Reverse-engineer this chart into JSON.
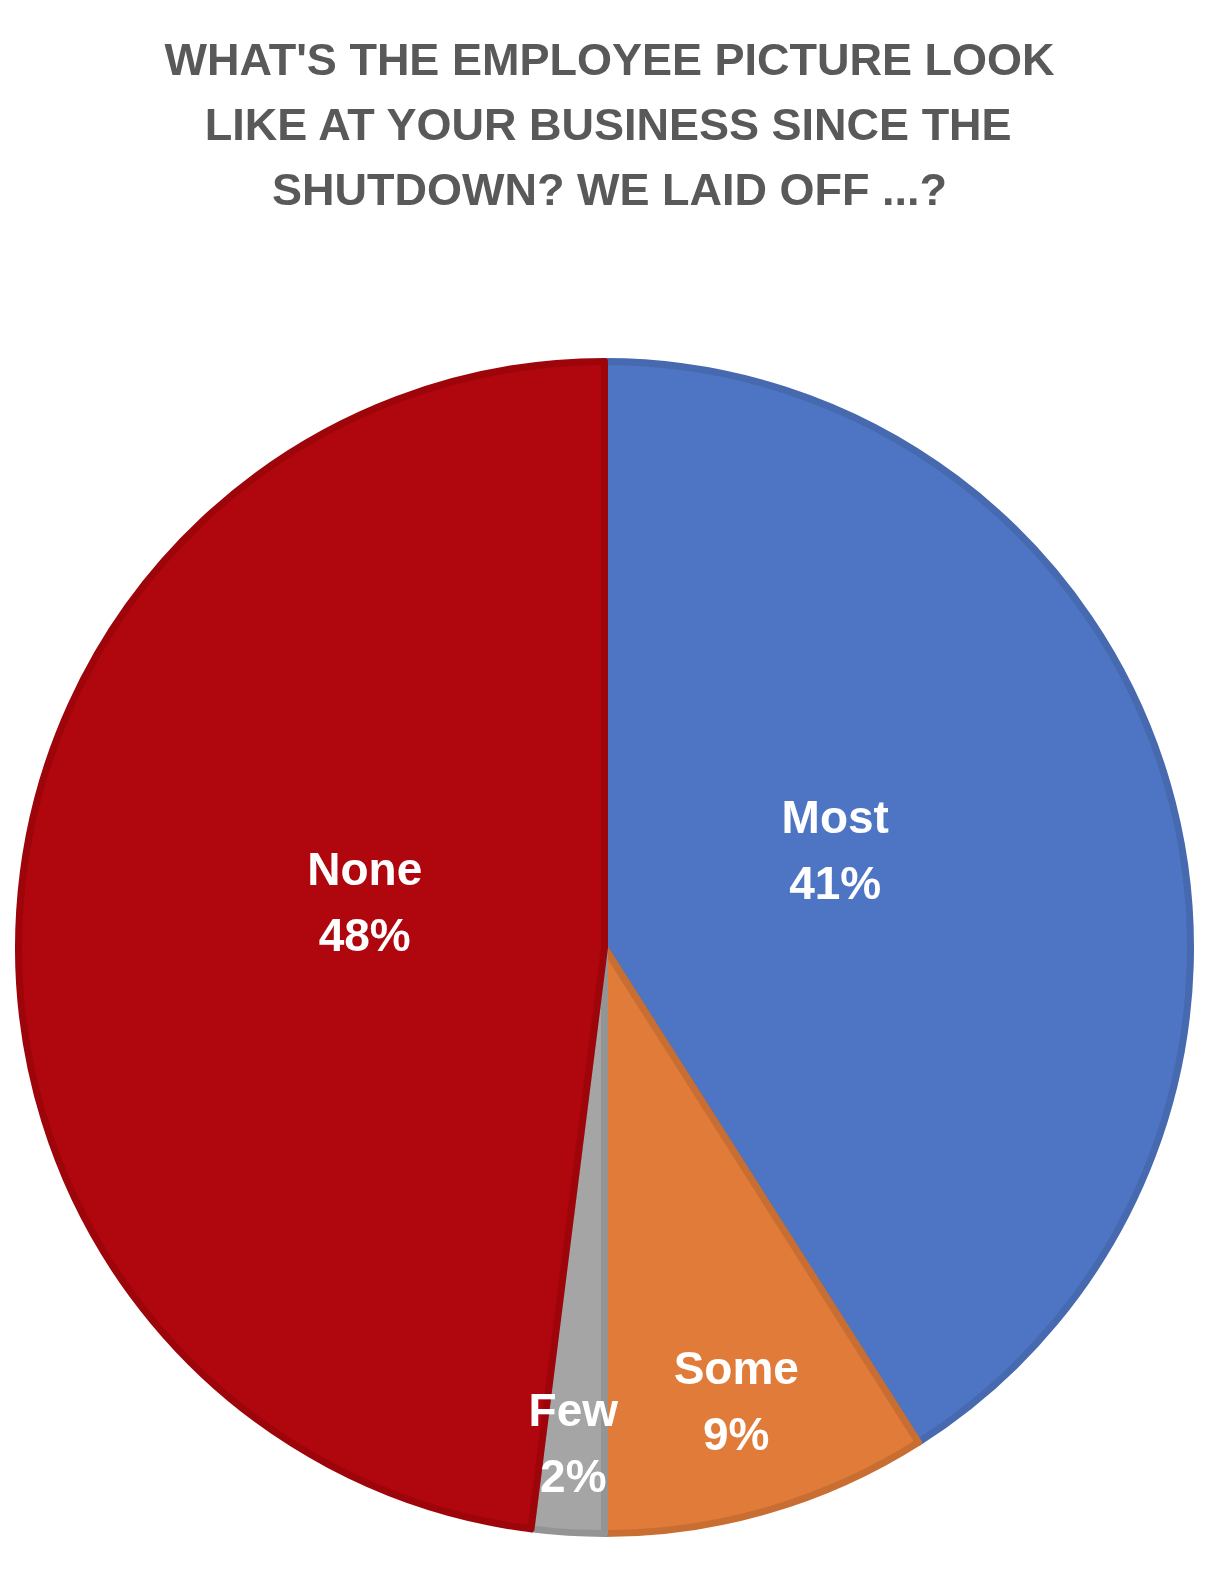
{
  "chart_data": {
    "type": "pie",
    "title": "WHAT'S THE EMPLOYEE PICTURE LOOK LIKE AT YOUR BUSINESS SINCE THE SHUTDOWN? WE LAID OFF ...?",
    "categories": [
      "Most",
      "Some",
      "Few",
      "None"
    ],
    "values": [
      41,
      9,
      2,
      48
    ],
    "value_labels": [
      "41%",
      "9%",
      "2%",
      "48%"
    ],
    "colors": [
      "#4e75c3",
      "#e07b39",
      "#a5a5a5",
      "#b0060d"
    ]
  }
}
